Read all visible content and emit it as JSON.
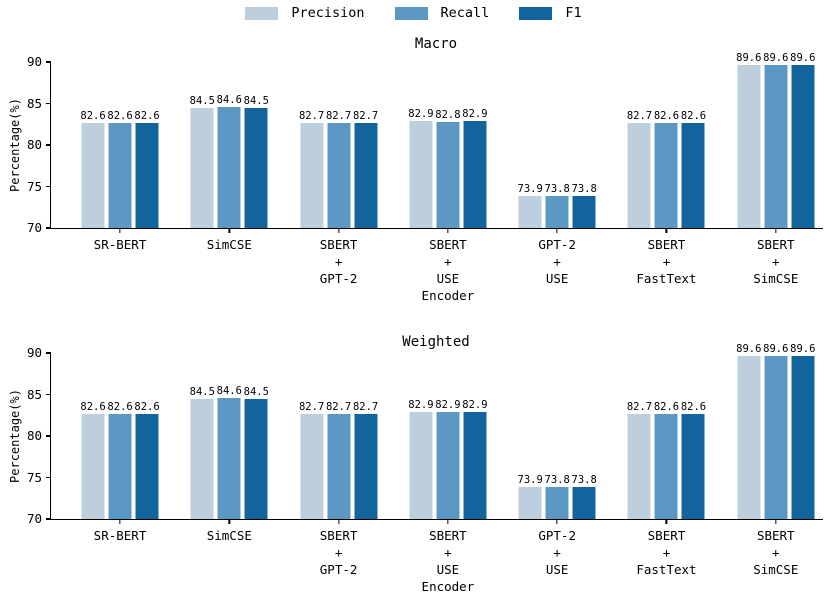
{
  "legend": {
    "items": [
      {
        "label": "Precision",
        "color": "#bdcfdc"
      },
      {
        "label": "Recall",
        "color": "#5b98c4"
      },
      {
        "label": "F1",
        "color": "#12659c"
      }
    ]
  },
  "axes": {
    "ylabel": "Percentage(%)",
    "yticks": [
      70,
      75,
      80,
      85,
      90
    ],
    "ylim": [
      70,
      90
    ]
  },
  "category_lines": [
    [
      "SR-BERT"
    ],
    [
      "SimCSE"
    ],
    [
      "SBERT",
      "+",
      "GPT-2"
    ],
    [
      "SBERT",
      "+",
      "USE",
      "Encoder"
    ],
    [
      "GPT-2",
      "+",
      "USE"
    ],
    [
      "SBERT",
      "+",
      "FastText"
    ],
    [
      "SBERT",
      "+",
      "SimCSE"
    ]
  ],
  "chart_data": [
    {
      "type": "bar",
      "title": "Macro",
      "categories": [
        "SR-BERT",
        "SimCSE",
        "SBERT + GPT-2",
        "SBERT + USE Encoder",
        "GPT-2 + USE",
        "SBERT + FastText",
        "SBERT + SimCSE"
      ],
      "series": [
        {
          "name": "Precision",
          "values": [
            82.6,
            84.5,
            82.7,
            82.9,
            73.9,
            82.7,
            89.6
          ]
        },
        {
          "name": "Recall",
          "values": [
            82.6,
            84.6,
            82.7,
            82.8,
            73.8,
            82.6,
            89.6
          ]
        },
        {
          "name": "F1",
          "values": [
            82.6,
            84.5,
            82.7,
            82.9,
            73.8,
            82.6,
            89.6
          ]
        }
      ],
      "xlabel": "",
      "ylabel": "Percentage(%)",
      "ylim": [
        70,
        90
      ],
      "grid": false,
      "legend_position": "top-center",
      "bar_value_labels": true
    },
    {
      "type": "bar",
      "title": "Weighted",
      "categories": [
        "SR-BERT",
        "SimCSE",
        "SBERT + GPT-2",
        "SBERT + USE Encoder",
        "GPT-2 + USE",
        "SBERT + FastText",
        "SBERT + SimCSE"
      ],
      "series": [
        {
          "name": "Precision",
          "values": [
            82.6,
            84.5,
            82.7,
            82.9,
            73.9,
            82.7,
            89.6
          ]
        },
        {
          "name": "Recall",
          "values": [
            82.6,
            84.6,
            82.7,
            82.9,
            73.8,
            82.6,
            89.6
          ]
        },
        {
          "name": "F1",
          "values": [
            82.6,
            84.5,
            82.7,
            82.9,
            73.8,
            82.6,
            89.6
          ]
        }
      ],
      "xlabel": "",
      "ylabel": "Percentage(%)",
      "ylim": [
        70,
        90
      ],
      "grid": false,
      "legend_position": "top-center",
      "bar_value_labels": true
    }
  ]
}
